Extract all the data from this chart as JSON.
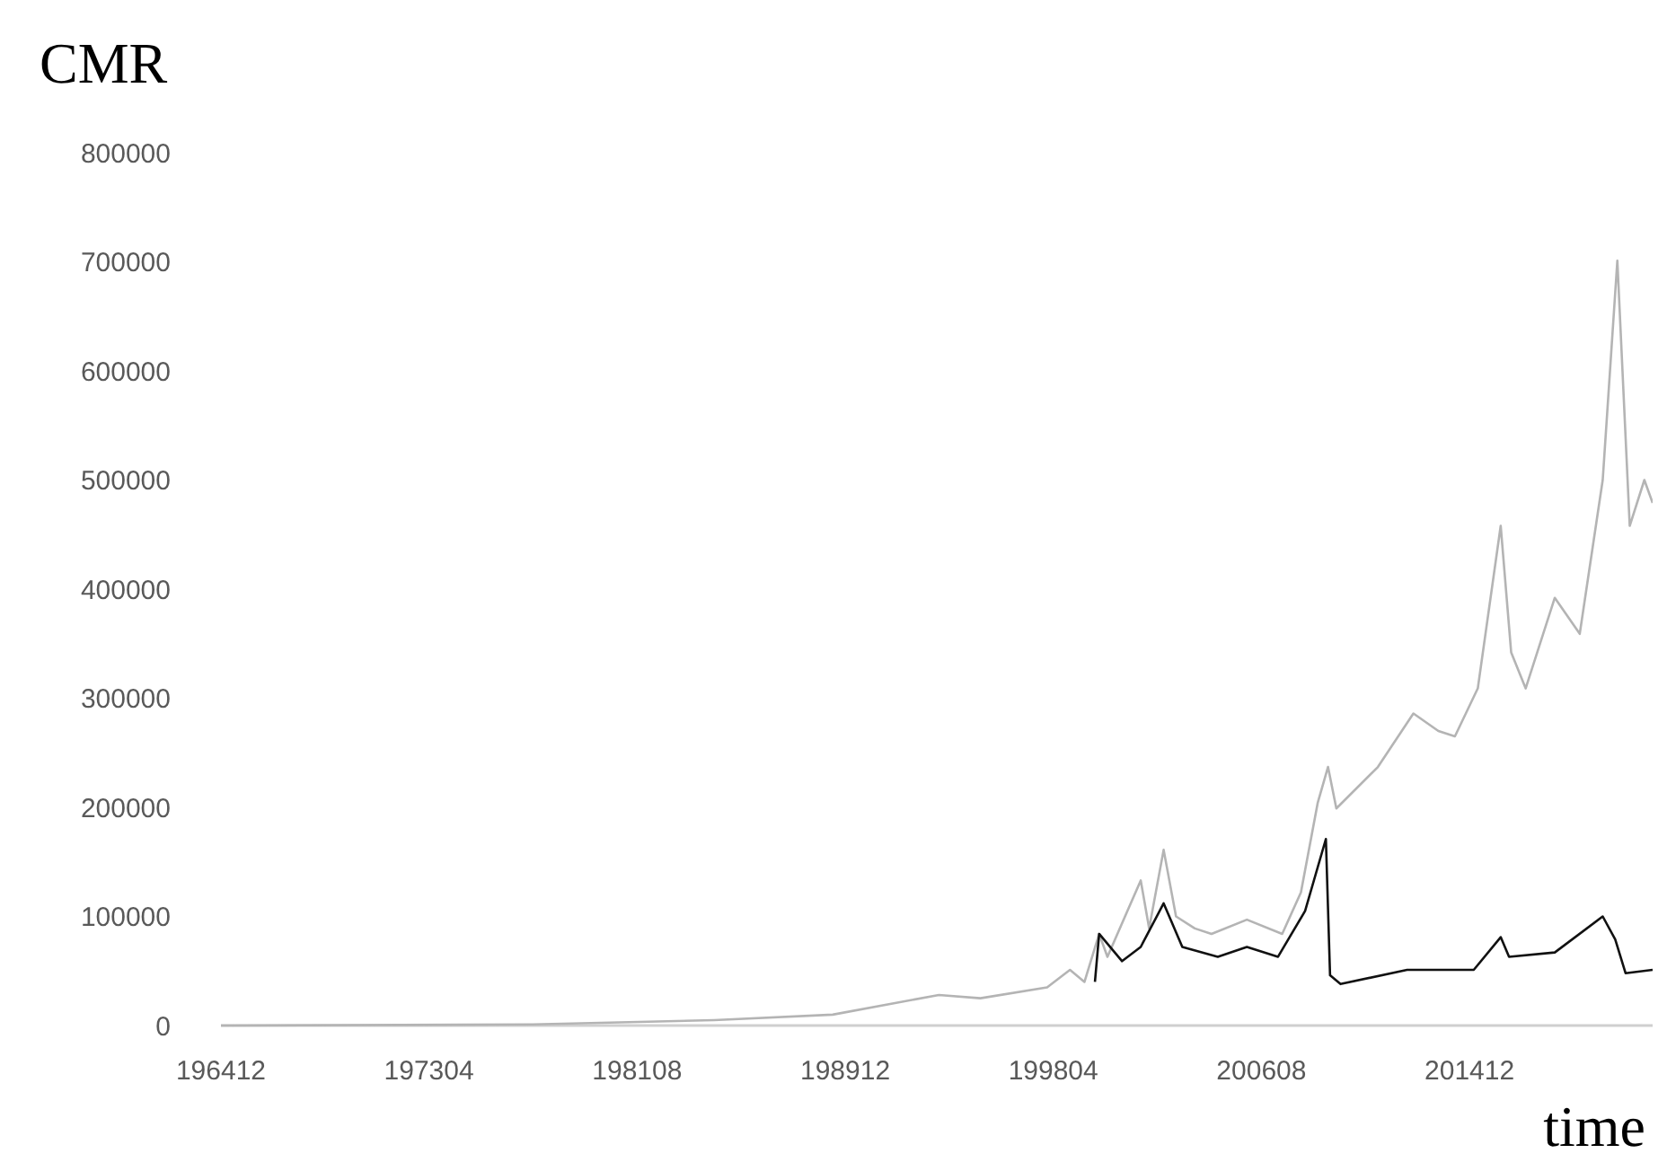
{
  "chart_data": {
    "type": "line",
    "ylabel": "CMR",
    "xlabel": "time",
    "xlim": [
      "1964-12",
      "2022-04"
    ],
    "ylim": [
      0,
      800000
    ],
    "xticks": [
      {
        "value": "1964-12",
        "label": "196412"
      },
      {
        "value": "1973-04",
        "label": "197304"
      },
      {
        "value": "1981-08",
        "label": "198108"
      },
      {
        "value": "1989-12",
        "label": "198912"
      },
      {
        "value": "1998-04",
        "label": "199804"
      },
      {
        "value": "2006-08",
        "label": "200608"
      },
      {
        "value": "2014-12",
        "label": "201412"
      }
    ],
    "yticks": [
      0,
      100000,
      200000,
      300000,
      400000,
      500000,
      600000,
      700000,
      800000
    ],
    "grid": false,
    "series": [
      {
        "color": "#b4b4b4",
        "x": [
          "1964-12",
          "1977-06",
          "1984-09",
          "1989-06",
          "1993-09",
          "1995-05",
          "1998-01",
          "1998-12",
          "1999-07",
          "2000-02",
          "2000-06",
          "2001-10",
          "2002-02",
          "2002-09",
          "2003-03",
          "2003-12",
          "2004-08",
          "2006-01",
          "2007-06",
          "2008-03",
          "2008-11",
          "2009-04",
          "2009-08",
          "2011-04",
          "2012-09",
          "2013-09",
          "2014-05",
          "2015-04",
          "2016-03",
          "2016-08",
          "2017-03",
          "2018-05",
          "2019-05",
          "2020-04",
          "2020-11",
          "2021-05",
          "2021-12",
          "2022-04"
        ],
        "values": [
          0,
          1000,
          5000,
          10000,
          28000,
          25000,
          35000,
          51000,
          40000,
          84000,
          63000,
          133000,
          89000,
          161000,
          100000,
          89000,
          84000,
          97000,
          84000,
          122000,
          204000,
          237000,
          199000,
          237000,
          286000,
          270000,
          265000,
          309000,
          458000,
          342000,
          309000,
          392000,
          359000,
          500000,
          701000,
          458000,
          500000,
          479000
        ]
      },
      {
        "color": "#111111",
        "x": [
          "1999-12",
          "2000-02",
          "2001-01",
          "2001-10",
          "2002-09",
          "2003-06",
          "2004-11",
          "2006-01",
          "2007-04",
          "2008-05",
          "2009-03",
          "2009-05",
          "2009-10",
          "2012-06",
          "2015-02",
          "2016-03",
          "2016-07",
          "2018-05",
          "2020-04",
          "2020-10",
          "2021-03",
          "2022-04"
        ],
        "values": [
          40000,
          84000,
          59000,
          72000,
          112000,
          72000,
          63000,
          72000,
          63000,
          105000,
          171000,
          46000,
          38000,
          51000,
          51000,
          81000,
          63000,
          67000,
          100000,
          79000,
          48000,
          51000
        ]
      }
    ]
  }
}
